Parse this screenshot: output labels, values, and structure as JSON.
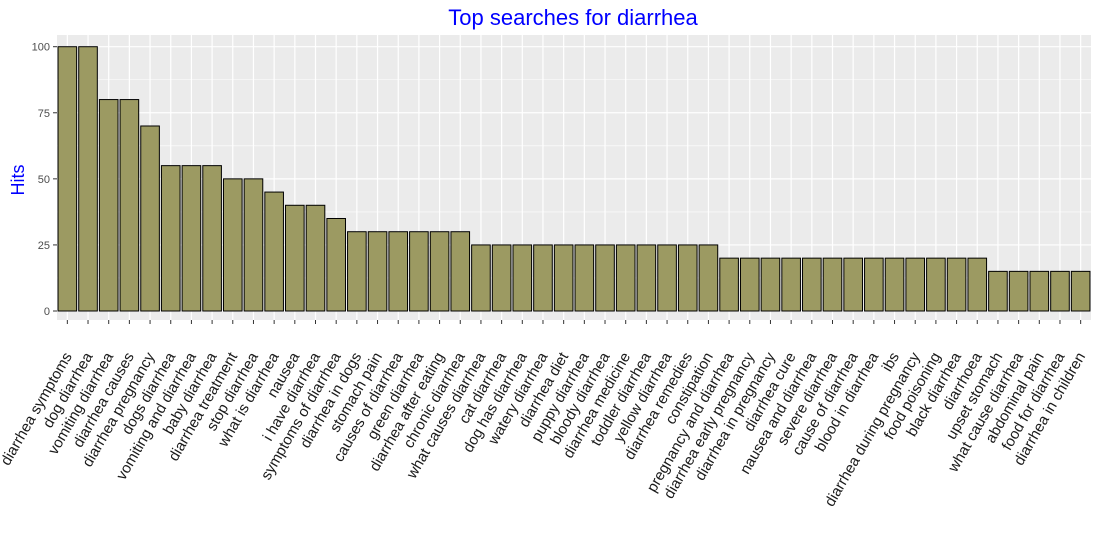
{
  "chart_data": {
    "type": "bar",
    "title": "Top searches for diarrhea",
    "xlabel": "",
    "ylabel": "Hits",
    "ylim": [
      0,
      105
    ],
    "yticks": [
      0,
      25,
      50,
      75,
      100
    ],
    "grid": true,
    "bar_color": "#9c9a62",
    "bar_edge_color": "#000000",
    "panel_color": "#ebebeb",
    "text_accent_color": "#0000ff",
    "categories": [
      "diarrhea symptoms",
      "dog diarrhea",
      "vomiting diarrhea",
      "diarrhea causes",
      "diarrhea pregnancy",
      "dogs diarrhea",
      "vomiting and diarrhea",
      "baby diarrhea",
      "diarrhea treatment",
      "stop diarrhea",
      "what is diarrhea",
      "nausea",
      "i have diarrhea",
      "symptoms of diarrhea",
      "diarrhea in dogs",
      "stomach pain",
      "causes of diarrhea",
      "green diarrhea",
      "diarrhea after eating",
      "chronic diarrhea",
      "what causes diarrhea",
      "cat diarrhea",
      "dog has diarrhea",
      "watery diarrhea",
      "diarrhea diet",
      "puppy diarrhea",
      "bloody diarrhea",
      "diarrhea medicine",
      "toddler diarrhea",
      "yellow diarrhea",
      "diarrhea remedies",
      "constipation",
      "pregnancy and diarrhea",
      "diarrhea early pregnancy",
      "diarrhea in pregnancy",
      "diarrhea cure",
      "nausea and diarrhea",
      "severe diarrhea",
      "cause of diarrhea",
      "blood in diarrhea",
      "ibs",
      "diarrhea during pregnancy",
      "food poisoning",
      "black diarrhea",
      "diarrhoea",
      "upset stomach",
      "what cause diarrhea",
      "abdominal pain",
      "food for diarrhea",
      "diarrhea in children"
    ],
    "values": [
      100,
      100,
      80,
      80,
      70,
      55,
      55,
      55,
      50,
      50,
      45,
      40,
      40,
      35,
      30,
      30,
      30,
      30,
      30,
      30,
      25,
      25,
      25,
      25,
      25,
      25,
      25,
      25,
      25,
      25,
      25,
      25,
      20,
      20,
      20,
      20,
      20,
      20,
      20,
      20,
      20,
      20,
      20,
      20,
      20,
      15,
      15,
      15,
      15,
      15
    ]
  }
}
